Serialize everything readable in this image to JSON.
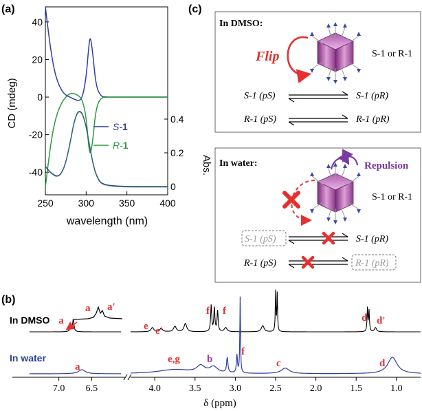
{
  "panel_a": {
    "label": "(a)",
    "ylabel": "CD (mdeg)",
    "ylabel_right": "Abs.",
    "xlabel": "wavelength (nm)",
    "legend": [
      {
        "prefix": "S-",
        "number": "1",
        "color": "#2e3f9e"
      },
      {
        "prefix": "R-",
        "number": "1",
        "color": "#2a9a3a"
      }
    ]
  },
  "panel_b": {
    "label": "(b)",
    "dmso_label": "In DMSO",
    "water_label": "In water",
    "water_color": "#2e3f9e",
    "xlabel": "δ (ppm)",
    "inset_labels": {
      "a": "a",
      "a_prime": "a'"
    },
    "peak_labels": [
      {
        "text": "a"
      },
      {
        "text": "e"
      },
      {
        "text": "e'"
      },
      {
        "text": "f"
      },
      {
        "text": "f"
      },
      {
        "text": "d"
      },
      {
        "text": "d'"
      },
      {
        "text": "a"
      },
      {
        "text": "e,g"
      },
      {
        "text": "b"
      },
      {
        "text": "f"
      },
      {
        "text": "c"
      },
      {
        "text": "d"
      }
    ]
  },
  "panel_c": {
    "label": "(c)",
    "dmso_box": {
      "title": "In DMSO:",
      "flip": "Flip",
      "enantiomers": "S-1 or R-1",
      "eq1_left": "S-1 (pS)",
      "eq1_right": "S-1 (pR)",
      "eq2_left": "R-1 (pS)",
      "eq2_right": "R-1 (pR)"
    },
    "water_box": {
      "title": "In water:",
      "repulsion": "Repulsion",
      "enantiomers": "S-1 or R-1",
      "eq1_left": "S-1 (pS)",
      "eq1_right": "S-1 (pR)",
      "eq2_left": "R-1 (pS)",
      "eq2_right": "R-1 (pR)"
    }
  },
  "chart_data": [
    {
      "type": "line",
      "title": "",
      "xlabel": "wavelength (nm)",
      "ylabel": "CD (mdeg)",
      "y2label": "Abs.",
      "xlim": [
        250,
        400
      ],
      "ylim": [
        -52,
        48
      ],
      "x_ticks": [
        "250",
        "300",
        "350",
        "400"
      ],
      "y_ticks": [
        "40",
        "20",
        "0",
        "-20",
        "-40"
      ],
      "y2_ticks": [
        "0.4",
        "0.2",
        "0"
      ],
      "series": [
        {
          "name": "S-1",
          "color": "#2e3f9e",
          "x": [
            250,
            255,
            260,
            265,
            270,
            275,
            280,
            285,
            290,
            295,
            300,
            303,
            305,
            308,
            312,
            318,
            325,
            340,
            360,
            400
          ],
          "y": [
            48,
            30,
            16,
            8,
            3.5,
            1,
            0,
            -1,
            -2,
            -1,
            10,
            26,
            33,
            24,
            6,
            0.3,
            0,
            0,
            0,
            0
          ]
        },
        {
          "name": "R-1",
          "color": "#2a9a3a",
          "x": [
            250,
            255,
            260,
            265,
            270,
            275,
            280,
            285,
            290,
            295,
            300,
            303,
            305,
            308,
            312,
            318,
            325,
            340,
            360,
            400
          ],
          "y": [
            -48,
            -30,
            -16,
            -8,
            -3,
            0,
            2,
            2,
            1,
            -1,
            -10,
            -26,
            -31,
            -24,
            -6,
            -0.3,
            0,
            0,
            0,
            0
          ]
        },
        {
          "name": "Abs",
          "axis": "right",
          "color": "#2e3f9e",
          "x": [
            250,
            255,
            260,
            265,
            270,
            275,
            280,
            285,
            290,
            295,
            300,
            305,
            310,
            315,
            320,
            330,
            350,
            400
          ],
          "y": [
            0.12,
            0.09,
            0.07,
            0.06,
            0.08,
            0.14,
            0.25,
            0.38,
            0.45,
            0.44,
            0.36,
            0.22,
            0.1,
            0.04,
            0.015,
            0.005,
            0.0,
            0.0
          ]
        }
      ]
    },
    {
      "type": "line",
      "title": "",
      "xlabel": "δ (ppm)",
      "x_ticks": [
        "7.0",
        "6.5",
        "4.0",
        "3.5",
        "3.0",
        "2.5",
        "2.0",
        "1.5",
        "1.0"
      ],
      "series": [
        {
          "name": "In DMSO"
        },
        {
          "name": "In water"
        }
      ]
    }
  ]
}
